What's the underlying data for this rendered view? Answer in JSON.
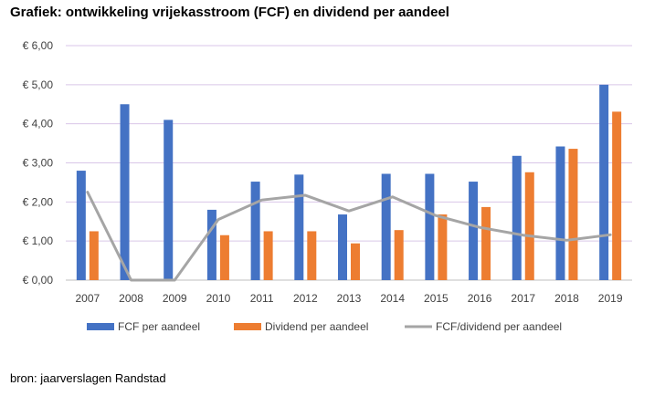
{
  "title": "Grafiek: ontwikkeling vrijekasstroom (FCF) en dividend per aandeel",
  "source": "bron: jaarverslagen Randstad",
  "chart_data": {
    "type": "bar",
    "categories": [
      "2007",
      "2008",
      "2009",
      "2010",
      "2011",
      "2012",
      "2013",
      "2014",
      "2015",
      "2016",
      "2017",
      "2018",
      "2019"
    ],
    "series": [
      {
        "name": "FCF per aandeel",
        "type": "bar",
        "color": "#4472C4",
        "values": [
          2.8,
          4.5,
          4.1,
          1.8,
          2.52,
          2.7,
          1.68,
          2.72,
          2.72,
          2.52,
          3.18,
          3.42,
          5.0
        ]
      },
      {
        "name": "Dividend per aandeel",
        "type": "bar",
        "color": "#ED7D31",
        "values": [
          1.25,
          null,
          null,
          1.15,
          1.25,
          1.25,
          0.94,
          1.28,
          1.68,
          1.87,
          2.76,
          3.36,
          4.31
        ]
      },
      {
        "name": "FCF/dividend per aandeel",
        "type": "line",
        "color": "#A5A5A5",
        "values": [
          2.25,
          0.0,
          0.0,
          1.55,
          2.05,
          2.17,
          1.77,
          2.13,
          1.65,
          1.35,
          1.15,
          1.02,
          1.16
        ]
      }
    ],
    "y_ticks": [
      "€ 0,00",
      "€ 1,00",
      "€ 2,00",
      "€ 3,00",
      "€ 4,00",
      "€ 5,00",
      "€ 6,00"
    ],
    "ylim": [
      0,
      6
    ],
    "grid": true,
    "legend_position": "bottom"
  }
}
